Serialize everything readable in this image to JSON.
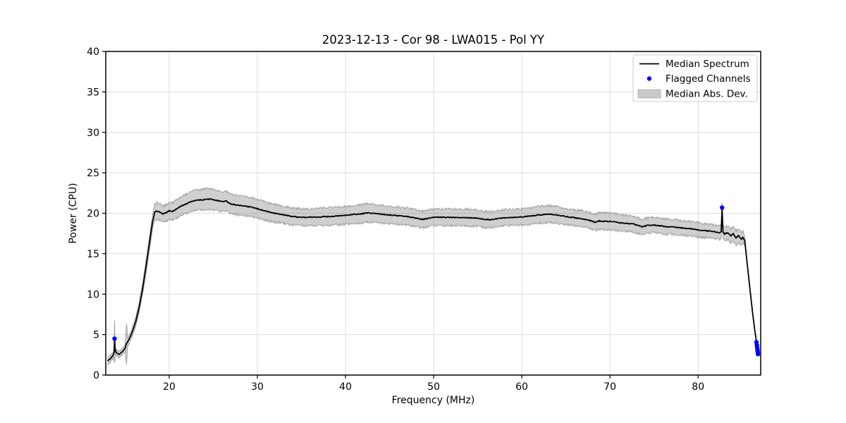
{
  "chart_data": {
    "type": "line",
    "title": "2023-12-13 - Cor 98 - LWA015 - Pol YY",
    "xlabel": "Frequency (MHz)",
    "ylabel": "Power (CPU)",
    "xlim": [
      12.8,
      87.1
    ],
    "ylim": [
      0,
      40
    ],
    "xticks": [
      20,
      30,
      40,
      50,
      60,
      70,
      80
    ],
    "yticks": [
      0,
      5,
      10,
      15,
      20,
      25,
      30,
      35,
      40
    ],
    "grid": true,
    "grid_color": "#dcdcdc",
    "legend": {
      "position": "upper right",
      "entries": [
        {
          "label": "Median Spectrum",
          "type": "line",
          "color": "#000000"
        },
        {
          "label": "Flagged Channels",
          "type": "marker",
          "color": "#0000ff"
        },
        {
          "label": "Median Abs. Dev.",
          "type": "patch",
          "color": "#c9c9c9"
        }
      ]
    },
    "series": [
      {
        "name": "Median Spectrum",
        "color": "#000000",
        "linewidth": 1.8,
        "anchors": [
          [
            13.0,
            1.75
          ],
          [
            13.3,
            2.0
          ],
          [
            13.6,
            2.4
          ],
          [
            13.75,
            2.8
          ],
          [
            13.8,
            4.4
          ],
          [
            13.85,
            3.2
          ],
          [
            14.0,
            2.75
          ],
          [
            14.3,
            2.55
          ],
          [
            14.6,
            2.8
          ],
          [
            15.0,
            3.3
          ],
          [
            15.15,
            3.9
          ],
          [
            15.4,
            4.3
          ],
          [
            15.8,
            5.3
          ],
          [
            16.2,
            6.6
          ],
          [
            16.6,
            8.4
          ],
          [
            17.0,
            10.8
          ],
          [
            17.4,
            13.6
          ],
          [
            17.8,
            16.6
          ],
          [
            18.1,
            18.9
          ],
          [
            18.35,
            20.1
          ],
          [
            18.6,
            20.3
          ],
          [
            18.9,
            20.15
          ],
          [
            19.3,
            19.9
          ],
          [
            19.7,
            20.1
          ],
          [
            20.0,
            20.3
          ],
          [
            20.4,
            20.25
          ],
          [
            20.8,
            20.5
          ],
          [
            21.2,
            20.8
          ],
          [
            21.6,
            21.0
          ],
          [
            22.0,
            21.2
          ],
          [
            22.5,
            21.45
          ],
          [
            23.0,
            21.6
          ],
          [
            23.5,
            21.65
          ],
          [
            24.0,
            21.7
          ],
          [
            24.5,
            21.75
          ],
          [
            25.0,
            21.7
          ],
          [
            25.5,
            21.55
          ],
          [
            26.0,
            21.45
          ],
          [
            26.5,
            21.5
          ],
          [
            27.0,
            21.15
          ],
          [
            27.5,
            21.05
          ],
          [
            28.0,
            20.95
          ],
          [
            28.5,
            20.9
          ],
          [
            29.0,
            20.8
          ],
          [
            29.5,
            20.7
          ],
          [
            30.0,
            20.55
          ],
          [
            30.5,
            20.4
          ],
          [
            31.0,
            20.25
          ],
          [
            31.5,
            20.1
          ],
          [
            32.0,
            20.0
          ],
          [
            32.5,
            19.9
          ],
          [
            33.0,
            19.8
          ],
          [
            33.5,
            19.7
          ],
          [
            34.0,
            19.6
          ],
          [
            34.5,
            19.55
          ],
          [
            35.0,
            19.5
          ],
          [
            36.0,
            19.5
          ],
          [
            37.0,
            19.55
          ],
          [
            38.0,
            19.6
          ],
          [
            39.0,
            19.65
          ],
          [
            40.0,
            19.75
          ],
          [
            40.5,
            19.8
          ],
          [
            41.0,
            19.85
          ],
          [
            41.5,
            19.9
          ],
          [
            42.0,
            19.95
          ],
          [
            42.5,
            20.05
          ],
          [
            43.0,
            20.0
          ],
          [
            43.5,
            19.95
          ],
          [
            44.0,
            19.9
          ],
          [
            45.0,
            19.8
          ],
          [
            46.0,
            19.7
          ],
          [
            47.0,
            19.6
          ],
          [
            47.5,
            19.5
          ],
          [
            48.0,
            19.4
          ],
          [
            48.7,
            19.25
          ],
          [
            49.3,
            19.35
          ],
          [
            50.0,
            19.5
          ],
          [
            51.0,
            19.5
          ],
          [
            52.0,
            19.5
          ],
          [
            53.0,
            19.5
          ],
          [
            54.0,
            19.45
          ],
          [
            55.0,
            19.4
          ],
          [
            55.7,
            19.25
          ],
          [
            56.3,
            19.2
          ],
          [
            57.0,
            19.3
          ],
          [
            58.0,
            19.45
          ],
          [
            59.0,
            19.5
          ],
          [
            60.0,
            19.55
          ],
          [
            61.0,
            19.65
          ],
          [
            62.0,
            19.8
          ],
          [
            62.7,
            19.85
          ],
          [
            63.3,
            19.9
          ],
          [
            64.0,
            19.8
          ],
          [
            65.0,
            19.6
          ],
          [
            66.0,
            19.45
          ],
          [
            67.0,
            19.3
          ],
          [
            67.7,
            19.1
          ],
          [
            68.3,
            18.9
          ],
          [
            68.8,
            19.05
          ],
          [
            69.3,
            19.0
          ],
          [
            70.0,
            19.0
          ],
          [
            70.7,
            18.9
          ],
          [
            71.3,
            18.8
          ],
          [
            72.0,
            18.75
          ],
          [
            72.7,
            18.65
          ],
          [
            73.3,
            18.45
          ],
          [
            73.7,
            18.3
          ],
          [
            74.2,
            18.5
          ],
          [
            75.0,
            18.55
          ],
          [
            75.7,
            18.45
          ],
          [
            76.3,
            18.35
          ],
          [
            77.0,
            18.3
          ],
          [
            78.0,
            18.2
          ],
          [
            79.0,
            18.1
          ],
          [
            80.0,
            17.95
          ],
          [
            80.7,
            17.85
          ],
          [
            81.3,
            17.8
          ],
          [
            82.0,
            17.7
          ],
          [
            82.45,
            17.6
          ],
          [
            82.62,
            17.7
          ],
          [
            82.72,
            20.5
          ],
          [
            82.82,
            17.7
          ],
          [
            83.0,
            17.45
          ],
          [
            83.4,
            17.6
          ],
          [
            83.7,
            17.2
          ],
          [
            84.0,
            17.45
          ],
          [
            84.3,
            16.95
          ],
          [
            84.6,
            17.25
          ],
          [
            84.9,
            16.8
          ],
          [
            85.1,
            17.05
          ],
          [
            85.3,
            16.6
          ],
          [
            85.5,
            14.5
          ],
          [
            85.8,
            11.5
          ],
          [
            86.1,
            8.5
          ],
          [
            86.4,
            5.8
          ],
          [
            86.6,
            4.3
          ],
          [
            86.8,
            2.75
          ]
        ]
      }
    ],
    "band": {
      "name": "Median Abs. Dev.",
      "fill_color": "rgba(128,128,128,0.38)",
      "edge_color": "rgba(128,128,128,0.65)",
      "halfwidth_anchors": [
        [
          13.0,
          0.45
        ],
        [
          13.7,
          0.4
        ],
        [
          13.8,
          2.5
        ],
        [
          13.9,
          0.4
        ],
        [
          14.5,
          0.4
        ],
        [
          15.0,
          0.45
        ],
        [
          15.15,
          2.5
        ],
        [
          15.3,
          0.45
        ],
        [
          16.0,
          0.55
        ],
        [
          17.0,
          0.7
        ],
        [
          18.0,
          0.9
        ],
        [
          18.6,
          1.05
        ],
        [
          19.5,
          1.0
        ],
        [
          20.5,
          1.1
        ],
        [
          21.5,
          1.2
        ],
        [
          23.0,
          1.25
        ],
        [
          24.5,
          1.3
        ],
        [
          26.0,
          1.25
        ],
        [
          28.0,
          1.2
        ],
        [
          30.0,
          1.15
        ],
        [
          32.0,
          1.1
        ],
        [
          34.0,
          1.05
        ],
        [
          36.0,
          1.05
        ],
        [
          38.0,
          1.1
        ],
        [
          40.0,
          1.1
        ],
        [
          42.0,
          1.15
        ],
        [
          44.0,
          1.1
        ],
        [
          46.0,
          1.05
        ],
        [
          48.0,
          1.05
        ],
        [
          50.0,
          1.05
        ],
        [
          52.0,
          1.05
        ],
        [
          54.0,
          1.05
        ],
        [
          56.0,
          1.0
        ],
        [
          58.0,
          1.0
        ],
        [
          60.0,
          1.0
        ],
        [
          62.0,
          1.05
        ],
        [
          64.0,
          1.05
        ],
        [
          66.0,
          1.0
        ],
        [
          68.0,
          1.0
        ],
        [
          70.0,
          1.05
        ],
        [
          72.0,
          1.0
        ],
        [
          74.0,
          0.95
        ],
        [
          76.0,
          0.95
        ],
        [
          78.0,
          0.9
        ],
        [
          80.0,
          0.9
        ],
        [
          81.0,
          0.85
        ],
        [
          82.0,
          0.85
        ],
        [
          83.0,
          0.85
        ],
        [
          84.0,
          0.9
        ],
        [
          84.8,
          0.85
        ],
        [
          85.2,
          0.7
        ],
        [
          85.4,
          0.3
        ],
        [
          85.6,
          0.0
        ]
      ]
    },
    "flagged": {
      "name": "Flagged Channels",
      "color": "#0000ff",
      "marker_radius": 3.2,
      "points": [
        [
          13.8,
          4.5
        ],
        [
          82.72,
          20.7
        ],
        [
          86.62,
          4.05
        ],
        [
          86.67,
          3.7
        ],
        [
          86.7,
          3.4
        ],
        [
          86.73,
          3.15
        ],
        [
          86.76,
          2.9
        ],
        [
          86.8,
          2.6
        ]
      ]
    },
    "noise": {
      "line_jitter": 0.055,
      "band_jitter": 0.14,
      "seed": 1234,
      "step": 0.08
    }
  }
}
